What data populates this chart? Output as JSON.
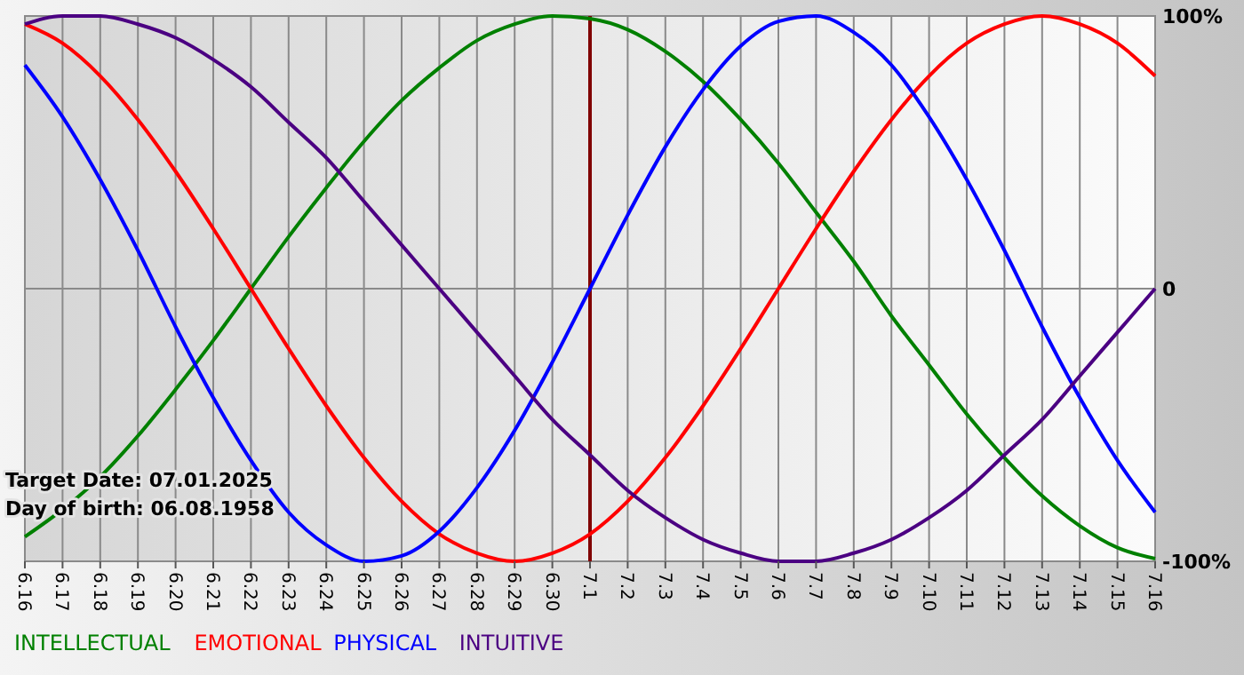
{
  "chart_data": {
    "type": "line",
    "categories": [
      "6.16",
      "6.17",
      "6.18",
      "6.19",
      "6.20",
      "6.21",
      "6.22",
      "6.23",
      "6.24",
      "6.25",
      "6.26",
      "6.27",
      "6.28",
      "6.29",
      "6.30",
      "7.1",
      "7.2",
      "7.3",
      "7.4",
      "7.5",
      "7.6",
      "7.7",
      "7.8",
      "7.9",
      "7.10",
      "7.11",
      "7.12",
      "7.13",
      "7.14",
      "7.15",
      "7.16"
    ],
    "series": [
      {
        "name": "INTELLECTUAL",
        "color": "#008000",
        "values": [
          -91,
          -81,
          -69,
          -54,
          -37,
          -19,
          0,
          19,
          37,
          54,
          69,
          81,
          91,
          97,
          100,
          99,
          95,
          87,
          76,
          62,
          46,
          28,
          10,
          -10,
          -28,
          -46,
          -62,
          -76,
          -87,
          -95,
          -99
        ]
      },
      {
        "name": "EMOTIONAL",
        "color": "#ff0000",
        "values": [
          97,
          90,
          78,
          62,
          43,
          22,
          0,
          -22,
          -43,
          -62,
          -78,
          -90,
          -97,
          -100,
          -97,
          -90,
          -78,
          -62,
          -43,
          -22,
          0,
          22,
          43,
          62,
          78,
          90,
          97,
          100,
          97,
          90,
          78
        ]
      },
      {
        "name": "PHYSICAL",
        "color": "#0000ff",
        "values": [
          82,
          63,
          40,
          14,
          -14,
          -40,
          -63,
          -82,
          -94,
          -100,
          -98,
          -89,
          -73,
          -52,
          -27,
          0,
          27,
          52,
          73,
          89,
          98,
          100,
          94,
          82,
          63,
          40,
          14,
          -14,
          -40,
          -63,
          -82
        ]
      },
      {
        "name": "INTUITIVE",
        "color": "#4b0082",
        "values": [
          97,
          100,
          100,
          97,
          92,
          84,
          74,
          61,
          48,
          32,
          16,
          0,
          -16,
          -32,
          -48,
          -61,
          -74,
          -84,
          -92,
          -97,
          -100,
          -100,
          -97,
          -92,
          -84,
          -74,
          -61,
          -48,
          -32,
          -16,
          0
        ]
      }
    ],
    "ylim": [
      -100,
      100
    ],
    "yticks": [
      {
        "value": -100,
        "label": "-100%"
      },
      {
        "value": 0,
        "label": "0"
      },
      {
        "value": 100,
        "label": "100%"
      }
    ],
    "grid": true,
    "legend": "bottom",
    "marker": "none",
    "line_style": "solid",
    "ref_lines": [
      {
        "axis": "x",
        "value": "7.1",
        "color": "#800000"
      }
    ],
    "annotations": [
      "Target Date: 07.01.2025",
      "Day of birth: 06.08.1958"
    ]
  }
}
